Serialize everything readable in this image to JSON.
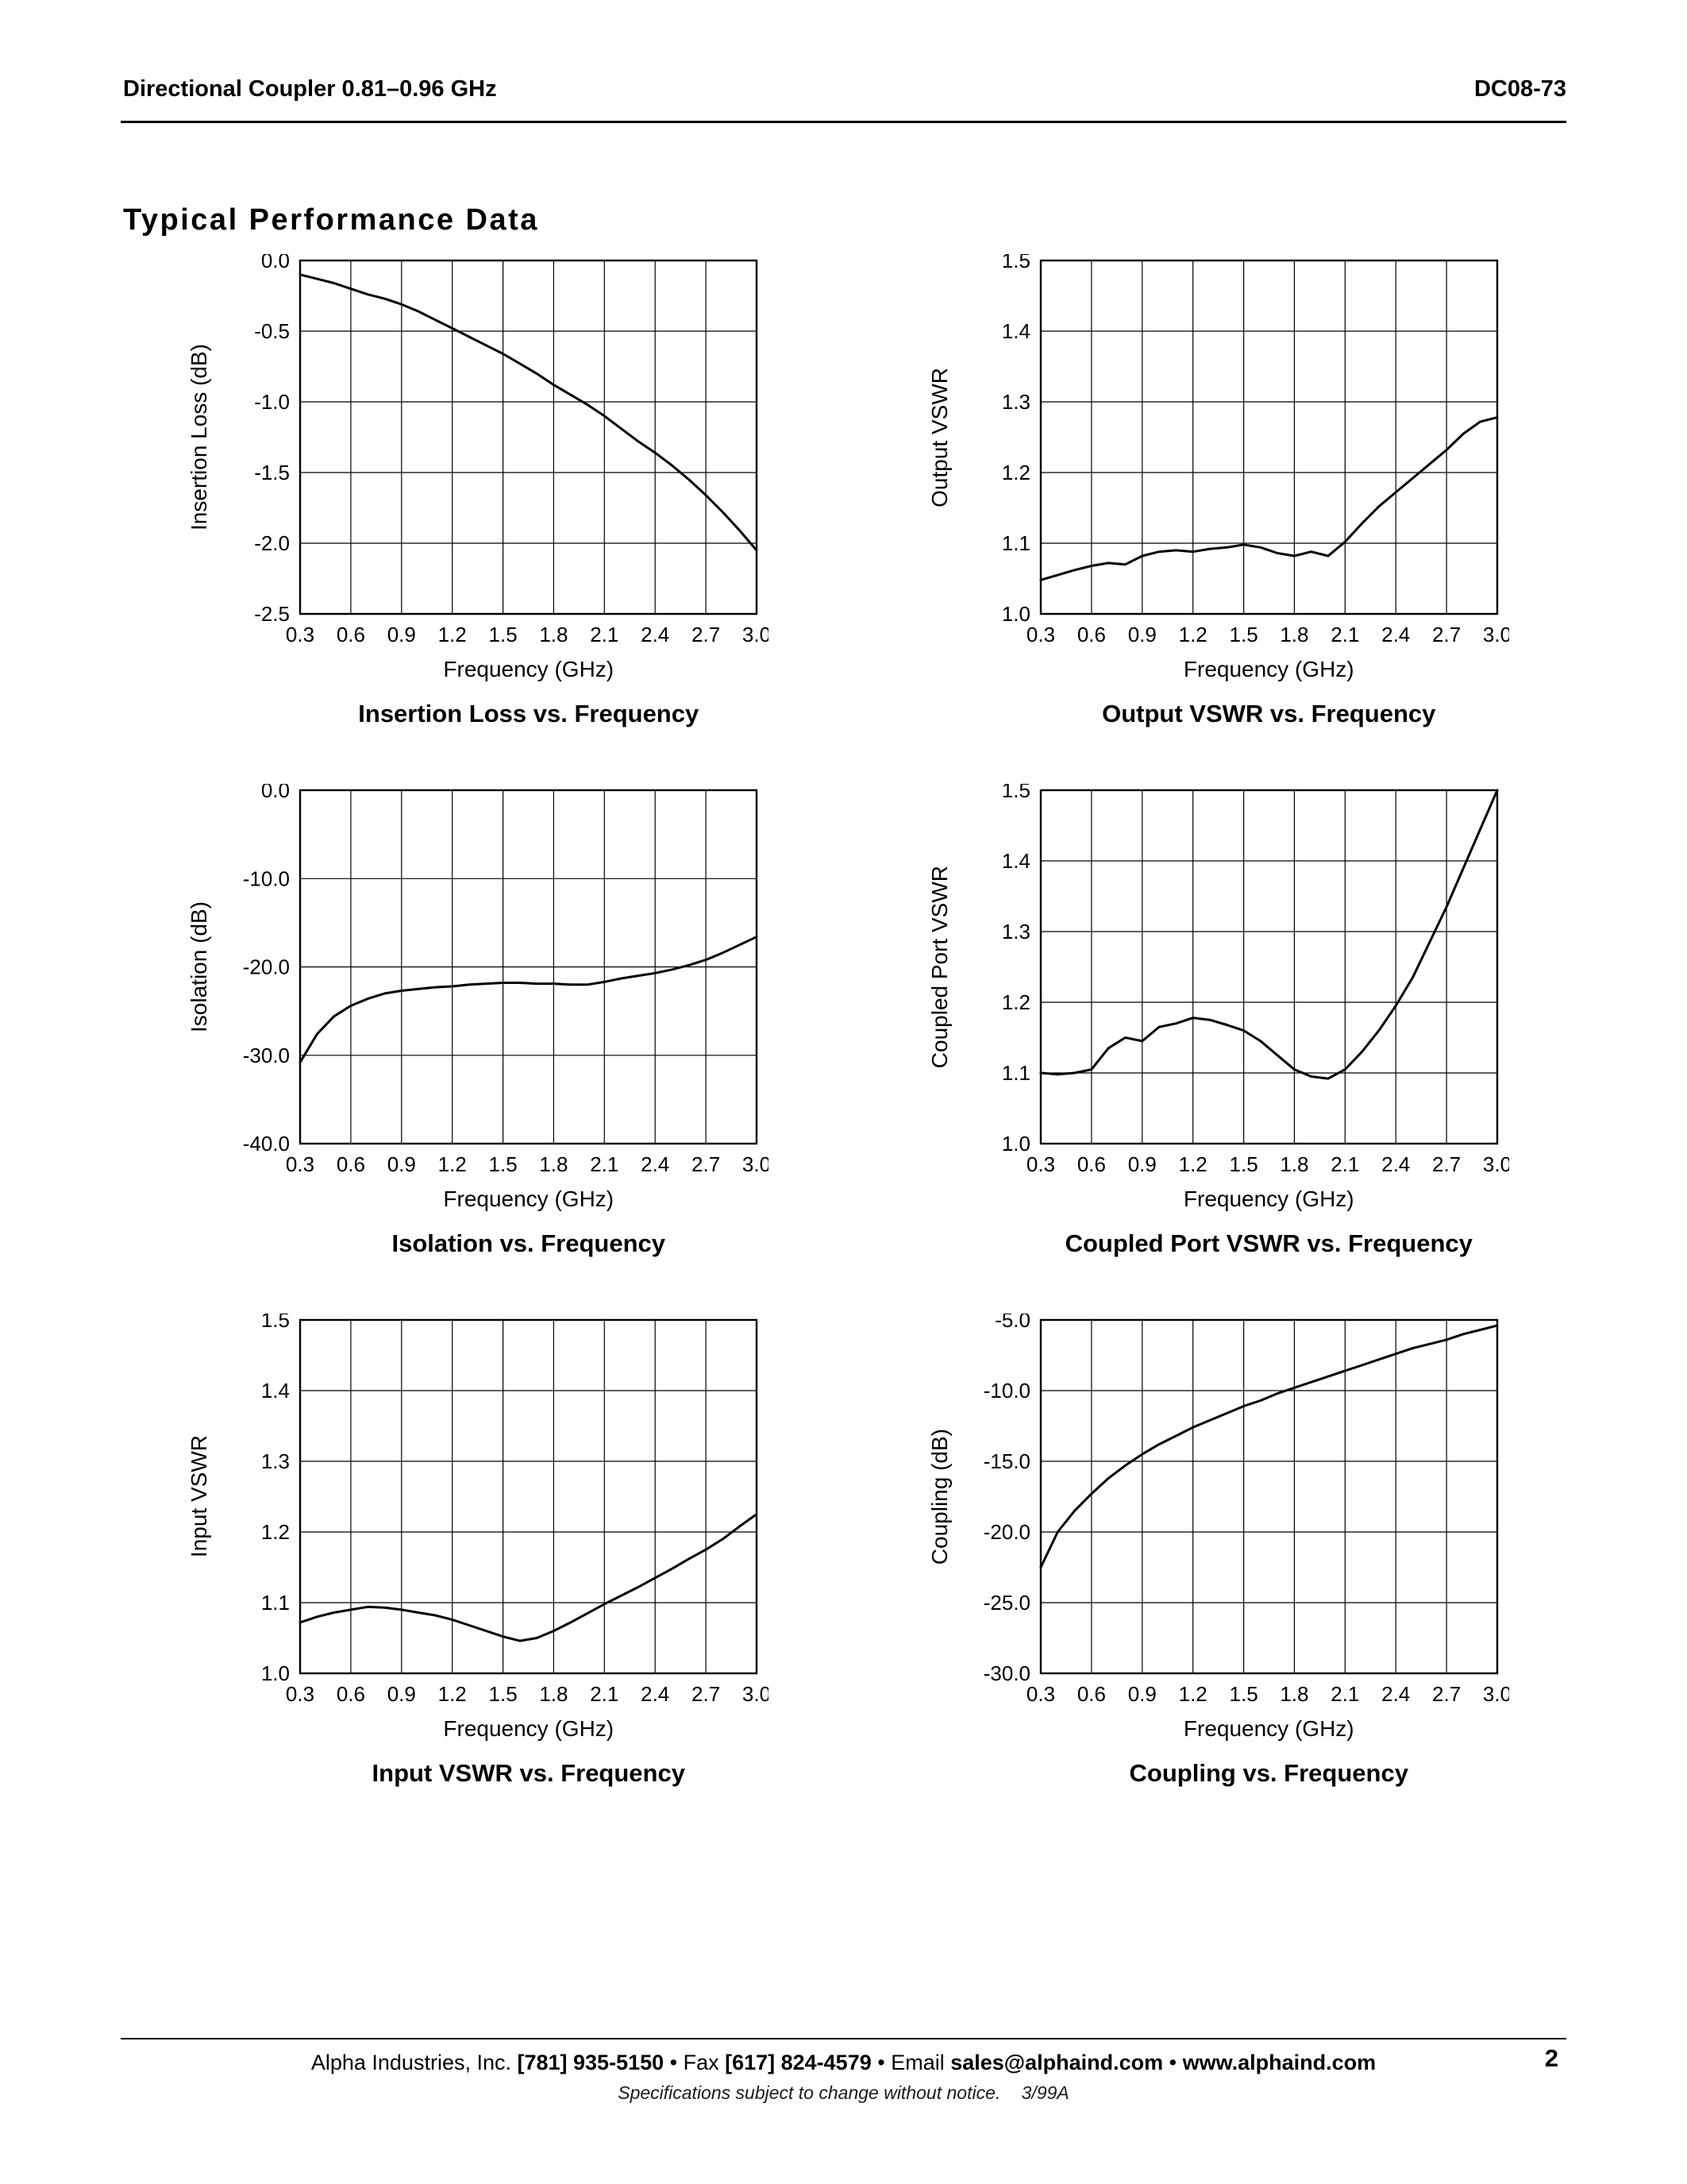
{
  "header": {
    "left": "Directional Coupler 0.81–0.96 GHz",
    "right": "DC08-73"
  },
  "section_title": "Typical Performance Data",
  "footer": {
    "segments": [
      {
        "text": "Alpha Industries, Inc. ",
        "bold": false
      },
      {
        "text": "[781] 935-5150",
        "bold": true
      },
      {
        "text": " • Fax ",
        "bold": false
      },
      {
        "text": "[617] 824-4579",
        "bold": true
      },
      {
        "text": " • Email ",
        "bold": false
      },
      {
        "text": "sales@alphaind.com",
        "bold": true
      },
      {
        "text": " • ",
        "bold": false
      },
      {
        "text": "www.alphaind.com",
        "bold": true
      }
    ],
    "page_number": "2",
    "notice": "Specifications subject to change without notice.",
    "revision": "3/99A"
  },
  "chart_data": [
    {
      "type": "line",
      "title": "Insertion Loss vs. Frequency",
      "xlabel": "Frequency (GHz)",
      "ylabel": "Insertion Loss (dB)",
      "xlim": [
        0.3,
        3.0
      ],
      "ylim": [
        -2.5,
        0.0
      ],
      "grid": true,
      "xticks": [
        0.3,
        0.6,
        0.9,
        1.2,
        1.5,
        1.8,
        2.1,
        2.4,
        2.7,
        3.0
      ],
      "xtick_labels": [
        "0.3",
        "0.6",
        "0.9",
        "1.2",
        "1.5",
        "1.8",
        "2.1",
        "2.4",
        "2.7",
        "3.0"
      ],
      "yticks": [
        0.0,
        -0.5,
        -1.0,
        -1.5,
        -2.0,
        -2.5
      ],
      "ytick_labels": [
        "0.0",
        "-0.5",
        "-1.0",
        "-1.5",
        "-2.0",
        "-2.5"
      ],
      "x": [
        0.3,
        0.4,
        0.5,
        0.6,
        0.7,
        0.8,
        0.9,
        1.0,
        1.1,
        1.2,
        1.3,
        1.4,
        1.5,
        1.6,
        1.7,
        1.8,
        1.9,
        2.0,
        2.1,
        2.2,
        2.3,
        2.4,
        2.5,
        2.6,
        2.7,
        2.8,
        2.9,
        3.0
      ],
      "y": [
        -0.1,
        -0.13,
        -0.16,
        -0.2,
        -0.24,
        -0.27,
        -0.31,
        -0.36,
        -0.42,
        -0.48,
        -0.54,
        -0.6,
        -0.66,
        -0.73,
        -0.8,
        -0.88,
        -0.95,
        -1.02,
        -1.1,
        -1.19,
        -1.28,
        -1.36,
        -1.45,
        -1.55,
        -1.66,
        -1.78,
        -1.91,
        -2.05
      ]
    },
    {
      "type": "line",
      "title": "Output VSWR vs. Frequency",
      "xlabel": "Frequency (GHz)",
      "ylabel": "Output VSWR",
      "xlim": [
        0.3,
        3.0
      ],
      "ylim": [
        1.0,
        1.5
      ],
      "grid": true,
      "xticks": [
        0.3,
        0.6,
        0.9,
        1.2,
        1.5,
        1.8,
        2.1,
        2.4,
        2.7,
        3.0
      ],
      "xtick_labels": [
        "0.3",
        "0.6",
        "0.9",
        "1.2",
        "1.5",
        "1.8",
        "2.1",
        "2.4",
        "2.7",
        "3.0"
      ],
      "yticks": [
        1.5,
        1.4,
        1.3,
        1.2,
        1.1,
        1.0
      ],
      "ytick_labels": [
        "1.5",
        "1.4",
        "1.3",
        "1.2",
        "1.1",
        "1.0"
      ],
      "x": [
        0.3,
        0.4,
        0.5,
        0.6,
        0.7,
        0.8,
        0.9,
        1.0,
        1.1,
        1.2,
        1.3,
        1.4,
        1.5,
        1.6,
        1.7,
        1.8,
        1.9,
        2.0,
        2.1,
        2.2,
        2.3,
        2.4,
        2.5,
        2.6,
        2.7,
        2.8,
        2.9,
        3.0
      ],
      "y": [
        1.048,
        1.055,
        1.062,
        1.068,
        1.072,
        1.07,
        1.082,
        1.088,
        1.09,
        1.088,
        1.092,
        1.094,
        1.098,
        1.094,
        1.086,
        1.082,
        1.088,
        1.082,
        1.102,
        1.128,
        1.152,
        1.172,
        1.192,
        1.212,
        1.232,
        1.255,
        1.272,
        1.278
      ]
    },
    {
      "type": "line",
      "title": "Isolation vs. Frequency",
      "xlabel": "Frequency (GHz)",
      "ylabel": "Isolation (dB)",
      "xlim": [
        0.3,
        3.0
      ],
      "ylim": [
        -40.0,
        0.0
      ],
      "grid": true,
      "xticks": [
        0.3,
        0.6,
        0.9,
        1.2,
        1.5,
        1.8,
        2.1,
        2.4,
        2.7,
        3.0
      ],
      "xtick_labels": [
        "0.3",
        "0.6",
        "0.9",
        "1.2",
        "1.5",
        "1.8",
        "2.1",
        "2.4",
        "2.7",
        "3.0"
      ],
      "yticks": [
        0.0,
        -10.0,
        -20.0,
        -30.0,
        -40.0
      ],
      "ytick_labels": [
        "0.0",
        "-10.0",
        "-20.0",
        "-30.0",
        "-40.0"
      ],
      "x": [
        0.3,
        0.4,
        0.5,
        0.6,
        0.7,
        0.8,
        0.9,
        1.0,
        1.1,
        1.2,
        1.3,
        1.4,
        1.5,
        1.6,
        1.7,
        1.8,
        1.9,
        2.0,
        2.1,
        2.2,
        2.3,
        2.4,
        2.5,
        2.6,
        2.7,
        2.8,
        2.9,
        3.0
      ],
      "y": [
        -30.8,
        -27.6,
        -25.6,
        -24.4,
        -23.6,
        -23.0,
        -22.7,
        -22.5,
        -22.3,
        -22.2,
        -22.0,
        -21.9,
        -21.8,
        -21.8,
        -21.9,
        -21.9,
        -22.0,
        -22.0,
        -21.7,
        -21.3,
        -21.0,
        -20.7,
        -20.3,
        -19.8,
        -19.2,
        -18.4,
        -17.5,
        -16.6
      ]
    },
    {
      "type": "line",
      "title": "Coupled Port VSWR vs. Frequency",
      "xlabel": "Frequency (GHz)",
      "ylabel": "Coupled Port VSWR",
      "xlim": [
        0.3,
        3.0
      ],
      "ylim": [
        1.0,
        1.5
      ],
      "grid": true,
      "xticks": [
        0.3,
        0.6,
        0.9,
        1.2,
        1.5,
        1.8,
        2.1,
        2.4,
        2.7,
        3.0
      ],
      "xtick_labels": [
        "0.3",
        "0.6",
        "0.9",
        "1.2",
        "1.5",
        "1.8",
        "2.1",
        "2.4",
        "2.7",
        "3.0"
      ],
      "yticks": [
        1.5,
        1.4,
        1.3,
        1.2,
        1.1,
        1.0
      ],
      "ytick_labels": [
        "1.5",
        "1.4",
        "1.3",
        "1.2",
        "1.1",
        "1.0"
      ],
      "x": [
        0.3,
        0.4,
        0.5,
        0.6,
        0.7,
        0.8,
        0.9,
        1.0,
        1.1,
        1.2,
        1.3,
        1.4,
        1.5,
        1.6,
        1.7,
        1.8,
        1.9,
        2.0,
        2.1,
        2.2,
        2.3,
        2.4,
        2.5,
        2.6,
        2.7,
        2.8,
        2.9,
        3.0
      ],
      "y": [
        1.1,
        1.098,
        1.1,
        1.105,
        1.135,
        1.15,
        1.145,
        1.165,
        1.17,
        1.178,
        1.175,
        1.168,
        1.16,
        1.145,
        1.125,
        1.105,
        1.095,
        1.092,
        1.105,
        1.13,
        1.16,
        1.195,
        1.235,
        1.285,
        1.335,
        1.39,
        1.445,
        1.5
      ]
    },
    {
      "type": "line",
      "title": "Input VSWR vs. Frequency",
      "xlabel": "Frequency (GHz)",
      "ylabel": "Input VSWR",
      "xlim": [
        0.3,
        3.0
      ],
      "ylim": [
        1.0,
        1.5
      ],
      "grid": true,
      "xticks": [
        0.3,
        0.6,
        0.9,
        1.2,
        1.5,
        1.8,
        2.1,
        2.4,
        2.7,
        3.0
      ],
      "xtick_labels": [
        "0.3",
        "0.6",
        "0.9",
        "1.2",
        "1.5",
        "1.8",
        "2.1",
        "2.4",
        "2.7",
        "3.0"
      ],
      "yticks": [
        1.5,
        1.4,
        1.3,
        1.2,
        1.1,
        1.0
      ],
      "ytick_labels": [
        "1.5",
        "1.4",
        "1.3",
        "1.2",
        "1.1",
        "1.0"
      ],
      "x": [
        0.3,
        0.4,
        0.5,
        0.6,
        0.7,
        0.8,
        0.9,
        1.0,
        1.1,
        1.2,
        1.3,
        1.4,
        1.5,
        1.6,
        1.7,
        1.8,
        1.9,
        2.0,
        2.1,
        2.2,
        2.3,
        2.4,
        2.5,
        2.6,
        2.7,
        2.8,
        2.9,
        3.0
      ],
      "y": [
        1.072,
        1.08,
        1.086,
        1.09,
        1.094,
        1.093,
        1.09,
        1.086,
        1.082,
        1.076,
        1.068,
        1.06,
        1.052,
        1.046,
        1.05,
        1.06,
        1.072,
        1.085,
        1.098,
        1.11,
        1.122,
        1.135,
        1.148,
        1.162,
        1.175,
        1.19,
        1.208,
        1.225
      ]
    },
    {
      "type": "line",
      "title": "Coupling vs. Frequency",
      "xlabel": "Frequency (GHz)",
      "ylabel": "Coupling (dB)",
      "xlim": [
        0.3,
        3.0
      ],
      "ylim": [
        -30.0,
        -5.0
      ],
      "grid": true,
      "xticks": [
        0.3,
        0.6,
        0.9,
        1.2,
        1.5,
        1.8,
        2.1,
        2.4,
        2.7,
        3.0
      ],
      "xtick_labels": [
        "0.3",
        "0.6",
        "0.9",
        "1.2",
        "1.5",
        "1.8",
        "2.1",
        "2.4",
        "2.7",
        "3.0"
      ],
      "yticks": [
        -5.0,
        -10.0,
        -15.0,
        -20.0,
        -25.0,
        -30.0
      ],
      "ytick_labels": [
        "-5.0",
        "-10.0",
        "-15.0",
        "-20.0",
        "-25.0",
        "-30.0"
      ],
      "x": [
        0.3,
        0.4,
        0.5,
        0.6,
        0.7,
        0.8,
        0.9,
        1.0,
        1.1,
        1.2,
        1.3,
        1.4,
        1.5,
        1.6,
        1.7,
        1.8,
        1.9,
        2.0,
        2.1,
        2.2,
        2.3,
        2.4,
        2.5,
        2.6,
        2.7,
        2.8,
        2.9,
        3.0
      ],
      "y": [
        -22.5,
        -20.0,
        -18.5,
        -17.3,
        -16.2,
        -15.3,
        -14.5,
        -13.8,
        -13.2,
        -12.6,
        -12.1,
        -11.6,
        -11.1,
        -10.7,
        -10.2,
        -9.8,
        -9.4,
        -9.0,
        -8.6,
        -8.2,
        -7.8,
        -7.4,
        -7.0,
        -6.7,
        -6.4,
        -6.0,
        -5.7,
        -5.4
      ]
    }
  ]
}
